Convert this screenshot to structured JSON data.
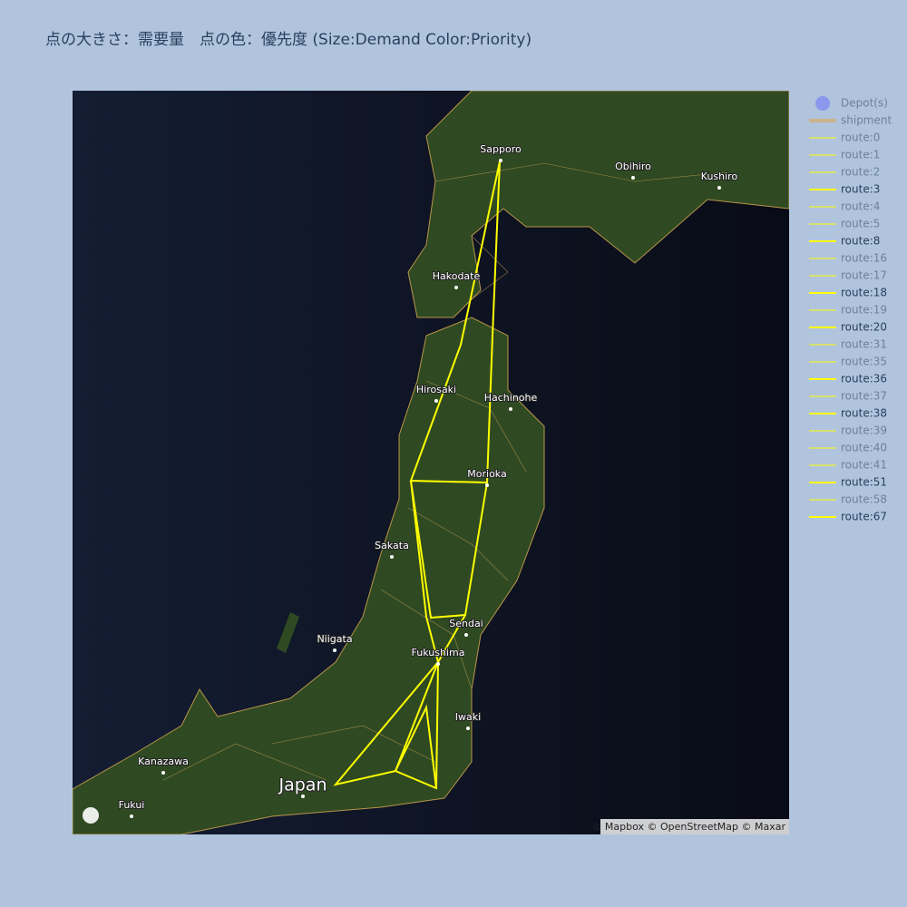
{
  "title": "点の大きさ：需要量　点の色：優先度 (Size:Demand Color:Priority)",
  "legend": [
    {
      "name": "Depot(s)",
      "visible": false,
      "symbol": "circle",
      "color": "#636efa"
    },
    {
      "name": "shipment",
      "visible": false,
      "symbol": "line",
      "color": "#e8a33c"
    },
    {
      "name": "route:0",
      "visible": false,
      "symbol": "line",
      "color": "#ffff00"
    },
    {
      "name": "route:1",
      "visible": false,
      "symbol": "line",
      "color": "#ffff00"
    },
    {
      "name": "route:2",
      "visible": false,
      "symbol": "line",
      "color": "#ffff00"
    },
    {
      "name": "route:3",
      "visible": true,
      "symbol": "line",
      "color": "#ffff00"
    },
    {
      "name": "route:4",
      "visible": false,
      "symbol": "line",
      "color": "#ffff00"
    },
    {
      "name": "route:5",
      "visible": false,
      "symbol": "line",
      "color": "#ffff00"
    },
    {
      "name": "route:8",
      "visible": true,
      "symbol": "line",
      "color": "#ffff00"
    },
    {
      "name": "route:16",
      "visible": false,
      "symbol": "line",
      "color": "#ffff00"
    },
    {
      "name": "route:17",
      "visible": false,
      "symbol": "line",
      "color": "#ffff00"
    },
    {
      "name": "route:18",
      "visible": true,
      "symbol": "line",
      "color": "#ffff00"
    },
    {
      "name": "route:19",
      "visible": false,
      "symbol": "line",
      "color": "#ffff00"
    },
    {
      "name": "route:20",
      "visible": true,
      "symbol": "line",
      "color": "#ffff00"
    },
    {
      "name": "route:31",
      "visible": false,
      "symbol": "line",
      "color": "#ffff00"
    },
    {
      "name": "route:35",
      "visible": false,
      "symbol": "line",
      "color": "#ffff00"
    },
    {
      "name": "route:36",
      "visible": true,
      "symbol": "line",
      "color": "#ffff00"
    },
    {
      "name": "route:37",
      "visible": false,
      "symbol": "line",
      "color": "#ffff00"
    },
    {
      "name": "route:38",
      "visible": true,
      "symbol": "line",
      "color": "#ffff00"
    },
    {
      "name": "route:39",
      "visible": false,
      "symbol": "line",
      "color": "#ffff00"
    },
    {
      "name": "route:40",
      "visible": false,
      "symbol": "line",
      "color": "#ffff00"
    },
    {
      "name": "route:41",
      "visible": false,
      "symbol": "line",
      "color": "#ffff00"
    },
    {
      "name": "route:51",
      "visible": true,
      "symbol": "line",
      "color": "#ffff00"
    },
    {
      "name": "route:58",
      "visible": false,
      "symbol": "line",
      "color": "#ffff00"
    },
    {
      "name": "route:67",
      "visible": true,
      "symbol": "line",
      "color": "#ffff00"
    }
  ],
  "map_labels": [
    "Sapporo",
    "Obihiro",
    "Kushiro",
    "Hakodate",
    "Hirosaki",
    "Hachinohe",
    "Morioka",
    "Sakata",
    "Sendai",
    "Niigata",
    "Fukushima",
    "Iwaki",
    "Kanazawa",
    "Japan",
    "Fukui"
  ],
  "attribution": "© Mapbox © OpenStreetMap © Maxar"
}
